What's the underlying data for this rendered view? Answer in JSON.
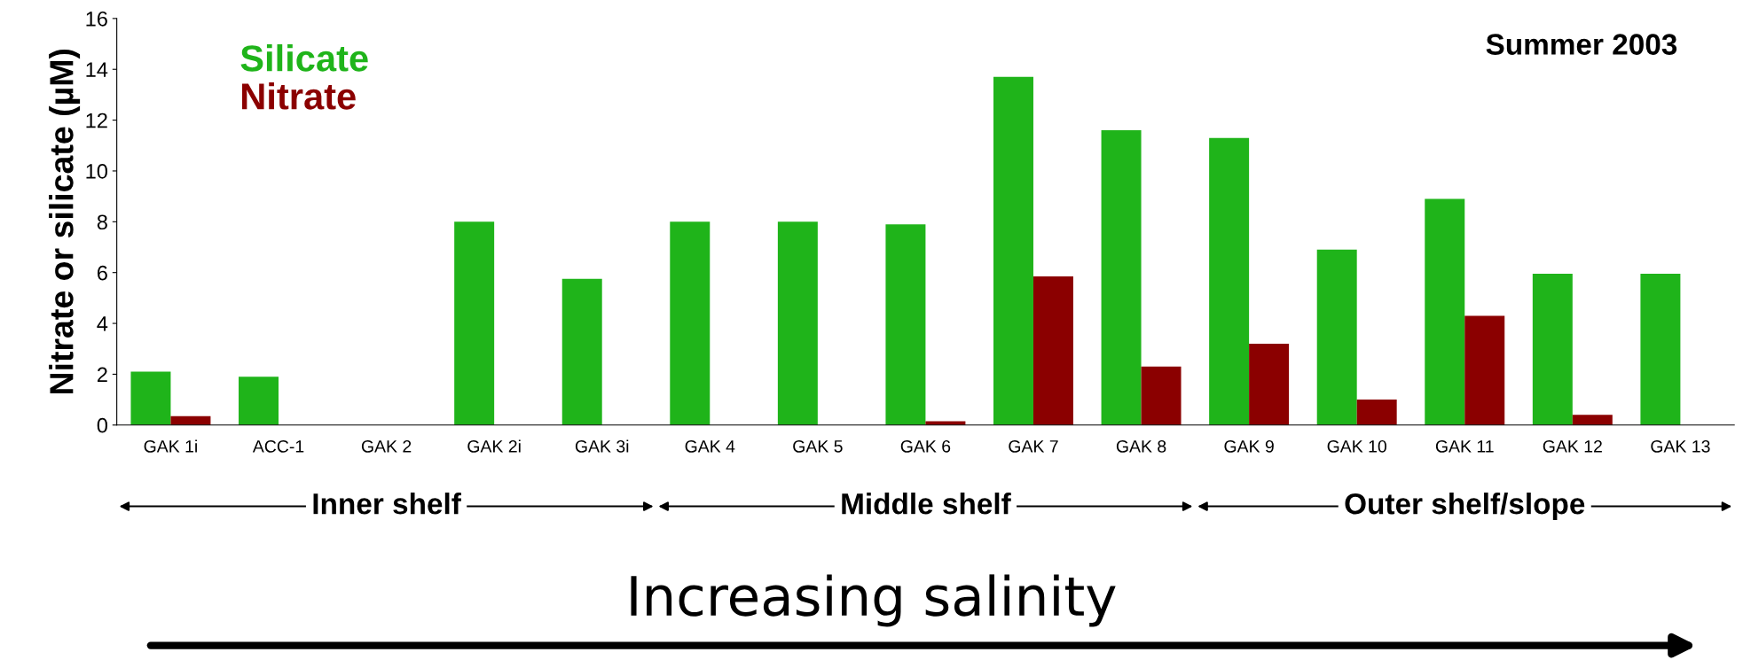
{
  "chart_data": {
    "type": "bar",
    "categories": [
      "GAK 1i",
      "ACC-1",
      "GAK 2",
      "GAK 2i",
      "GAK 3i",
      "GAK 4",
      "GAK 5",
      "GAK 6",
      "GAK 7",
      "GAK 8",
      "GAK 9",
      "GAK 10",
      "GAK 11",
      "GAK 12",
      "GAK 13"
    ],
    "series": [
      {
        "name": "Silicate",
        "color": "#1fb41a",
        "values": [
          2.1,
          1.9,
          0,
          8.0,
          5.75,
          8.0,
          8.0,
          7.9,
          13.7,
          11.6,
          11.3,
          6.9,
          8.9,
          5.95,
          5.95
        ]
      },
      {
        "name": "Nitrate",
        "color": "#8b0000",
        "values": [
          0.35,
          0,
          0,
          0,
          0,
          0,
          0,
          0.15,
          5.85,
          2.3,
          3.2,
          1.0,
          4.3,
          0.4,
          0
        ]
      }
    ],
    "ylabel": "Nitrate or silicate (µM)",
    "ylim": [
      0,
      16
    ],
    "yticks": [
      0,
      2,
      4,
      6,
      8,
      10,
      12,
      14,
      16
    ],
    "grid": false,
    "legend": "top left",
    "annotations": [
      "Summer 2003",
      "Inner shelf",
      "Middle shelf",
      "Outer shelf/slope",
      "Increasing salinity"
    ]
  }
}
